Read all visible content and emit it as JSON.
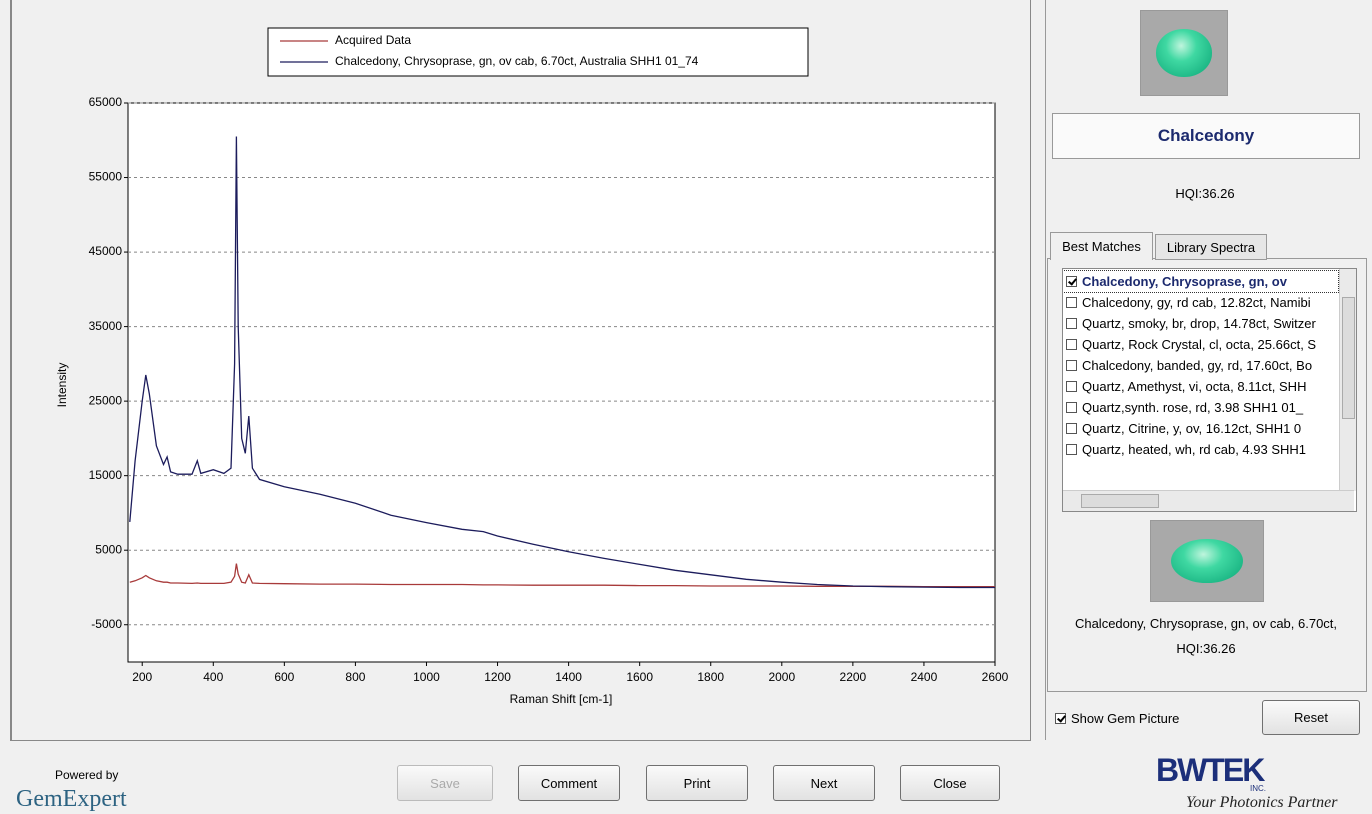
{
  "chart_data": {
    "type": "line",
    "xlabel": "Raman Shift [cm-1]",
    "ylabel": "Intensity",
    "x": [
      165,
      180,
      200,
      210,
      220,
      240,
      260,
      270,
      280,
      300,
      340,
      355,
      365,
      400,
      430,
      450,
      460,
      465,
      470,
      480,
      490,
      500,
      510,
      530,
      600,
      700,
      800,
      900,
      1000,
      1100,
      1160,
      1200,
      1300,
      1400,
      1500,
      1600,
      1700,
      1800,
      1900,
      2000,
      2100,
      2200,
      2300,
      2400,
      2500,
      2600
    ],
    "series": [
      {
        "name": "Acquired Data",
        "color": "#a83a3a",
        "values": [
          700,
          900,
          1300,
          1600,
          1300,
          900,
          700,
          700,
          600,
          600,
          550,
          600,
          550,
          550,
          550,
          700,
          1500,
          3200,
          1800,
          700,
          600,
          1700,
          600,
          550,
          500,
          450,
          450,
          400,
          400,
          400,
          350,
          350,
          300,
          300,
          300,
          250,
          250,
          200,
          200,
          200,
          150,
          150,
          150,
          100,
          100,
          100
        ]
      },
      {
        "name": "Chalcedony, Chrysoprase, gn, ov cab, 6.70ct, Australia  SHH1  01_74",
        "color": "#1c1c5c",
        "values": [
          8800,
          17000,
          25000,
          28500,
          26000,
          19000,
          16500,
          17500,
          15500,
          15200,
          15200,
          17000,
          15300,
          15800,
          15300,
          16000,
          30000,
          60500,
          35000,
          20000,
          18000,
          23000,
          16000,
          14500,
          13500,
          12500,
          11300,
          9700,
          8700,
          7800,
          7500,
          6900,
          5800,
          4800,
          3900,
          3100,
          2300,
          1700,
          1100,
          700,
          400,
          200,
          100,
          50,
          0,
          0
        ]
      }
    ],
    "xlim": [
      160,
      2600
    ],
    "xticks": [
      200,
      400,
      600,
      800,
      1000,
      1200,
      1400,
      1600,
      1800,
      2000,
      2200,
      2400,
      2600
    ],
    "ylim": [
      -10000,
      65000
    ],
    "yticks": [
      -5000,
      5000,
      15000,
      25000,
      35000,
      45000,
      55000,
      65000
    ],
    "grid": true,
    "legend": "top"
  },
  "panel": {
    "result_name": "Chalcedony",
    "hqi": "HQI:36.26",
    "tabs": [
      "Best Matches",
      "Library Spectra"
    ],
    "matches": [
      "Chalcedony, Chrysoprase, gn, ov",
      "Chalcedony, gy, rd cab, 12.82ct, Namibi",
      "Quartz, smoky, br, drop, 14.78ct, Switzer",
      "Quartz, Rock Crystal, cl, octa, 25.66ct, S",
      "Chalcedony, banded, gy, rd, 17.60ct, Bo",
      "Quartz, Amethyst, vi, octa, 8.11ct,  SHH",
      "Quartz,synth. rose, rd, 3.98  SHH1  01_",
      "Quartz, Citrine, y, ov, 16.12ct,  SHH1  0",
      "Quartz, heated, wh, rd cab, 4.93  SHH1"
    ],
    "caption": "Chalcedony, Chrysoprase, gn, ov cab, 6.70ct,",
    "caption_hqi": "HQI:36.26",
    "show_picture": "Show Gem Picture",
    "reset": "Reset"
  },
  "buttons": [
    "Save",
    "Comment",
    "Print",
    "Next",
    "Close"
  ],
  "branding": {
    "powered_by": "Powered by",
    "product": "GemExpert",
    "company": "BWTEK",
    "company_sub": "INC.",
    "tagline": "Your Photonics Partner"
  }
}
